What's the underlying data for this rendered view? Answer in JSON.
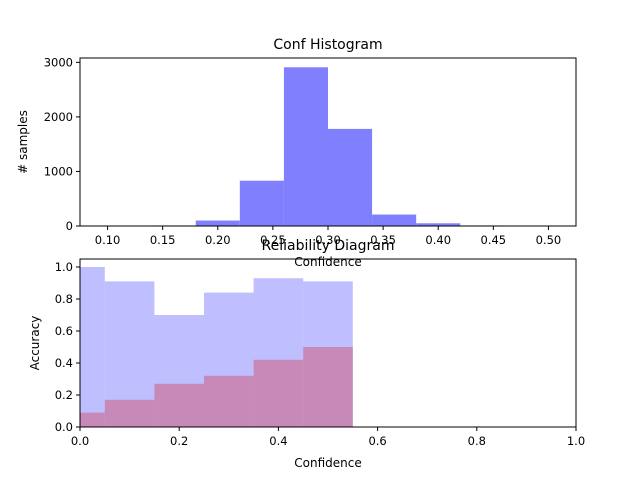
{
  "chart_data": [
    {
      "type": "bar",
      "title": "Conf Histogram",
      "xlabel": "Confidence",
      "ylabel": "# samples",
      "xlim": [
        0.075,
        0.525
      ],
      "ylim": [
        0,
        3080
      ],
      "xticks": [
        "0.10",
        "0.15",
        "0.20",
        "0.25",
        "0.30",
        "0.35",
        "0.40",
        "0.45",
        "0.50"
      ],
      "yticks": [
        "0",
        "1000",
        "2000",
        "3000"
      ],
      "bin_edges": [
        0.1,
        0.14,
        0.18,
        0.22,
        0.26,
        0.3,
        0.34,
        0.38,
        0.42,
        0.46,
        0.5
      ],
      "values": [
        5,
        10,
        100,
        830,
        2910,
        1780,
        210,
        50,
        10,
        5
      ],
      "color": "#8080ff",
      "grid": false
    },
    {
      "type": "bar",
      "title": "Reliability Diagram",
      "xlabel": "Confidence",
      "ylabel": "Accuracy",
      "xlim": [
        0,
        1
      ],
      "ylim": [
        0,
        1.05
      ],
      "xticks": [
        "0.0",
        "0.2",
        "0.4",
        "0.6",
        "0.8",
        "1.0"
      ],
      "yticks": [
        "0.0",
        "0.2",
        "0.4",
        "0.6",
        "0.8",
        "1.0"
      ],
      "series": [
        {
          "bin_edges": [
            0.0,
            0.05,
            0.15,
            0.25,
            0.35,
            0.45,
            0.55
          ],
          "values": [
            1.0,
            0.91,
            0.7,
            0.84,
            0.93,
            0.91
          ],
          "color": "#8080ff",
          "opacity": 0.5
        },
        {
          "bin_edges": [
            0.0,
            0.05,
            0.15,
            0.25,
            0.35,
            0.45,
            0.55
          ],
          "values": [
            0.09,
            0.17,
            0.27,
            0.32,
            0.42,
            0.5
          ],
          "color": "#cc6688",
          "opacity": 0.6
        }
      ],
      "grid": false
    }
  ]
}
